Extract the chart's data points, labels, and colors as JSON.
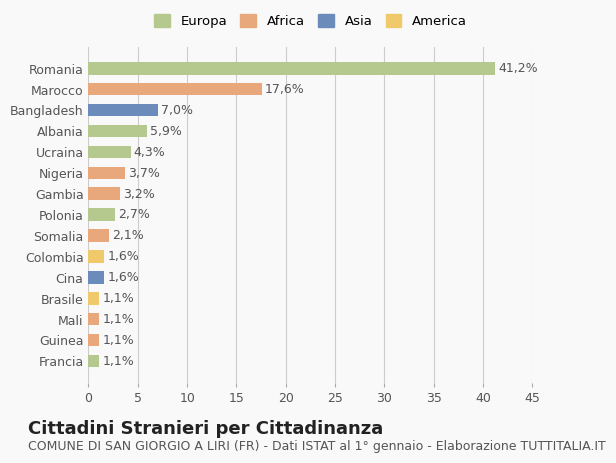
{
  "countries": [
    "Romania",
    "Marocco",
    "Bangladesh",
    "Albania",
    "Ucraina",
    "Nigeria",
    "Gambia",
    "Polonia",
    "Somalia",
    "Colombia",
    "Cina",
    "Brasile",
    "Mali",
    "Guinea",
    "Francia"
  ],
  "values": [
    41.2,
    17.6,
    7.0,
    5.9,
    4.3,
    3.7,
    3.2,
    2.7,
    2.1,
    1.6,
    1.6,
    1.1,
    1.1,
    1.1,
    1.1
  ],
  "labels": [
    "41,2%",
    "17,6%",
    "7,0%",
    "5,9%",
    "4,3%",
    "3,7%",
    "3,2%",
    "2,7%",
    "2,1%",
    "1,6%",
    "1,6%",
    "1,1%",
    "1,1%",
    "1,1%",
    "1,1%"
  ],
  "continents": [
    "Europa",
    "Africa",
    "Asia",
    "Europa",
    "Europa",
    "Africa",
    "Africa",
    "Europa",
    "Africa",
    "America",
    "Asia",
    "America",
    "Africa",
    "Africa",
    "Europa"
  ],
  "colors": {
    "Europa": "#b5c98e",
    "Africa": "#e8a87c",
    "Asia": "#6b8cba",
    "America": "#f0c96b"
  },
  "legend_colors": {
    "Europa": "#b5c98e",
    "Africa": "#e8a87c",
    "Asia": "#6b8cba",
    "America": "#f0c96b"
  },
  "title": "Cittadini Stranieri per Cittadinanza",
  "subtitle": "COMUNE DI SAN GIORGIO A LIRI (FR) - Dati ISTAT al 1° gennaio - Elaborazione TUTTITALIA.IT",
  "xlim": [
    0,
    45
  ],
  "xticks": [
    0,
    5,
    10,
    15,
    20,
    25,
    30,
    35,
    40,
    45
  ],
  "background_color": "#f9f9f9",
  "grid_color": "#cccccc",
  "bar_height": 0.6,
  "label_fontsize": 9,
  "tick_fontsize": 9,
  "title_fontsize": 13,
  "subtitle_fontsize": 9
}
